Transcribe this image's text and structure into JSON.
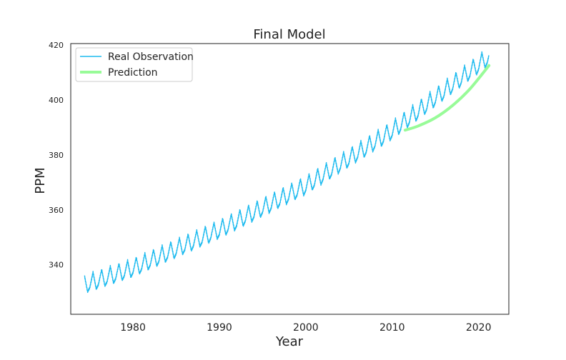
{
  "chart_data": {
    "type": "line",
    "title": "Final Model",
    "xlabel": "Year",
    "ylabel": "PPM",
    "xlim": [
      1972.8,
      2023.5
    ],
    "ylim": [
      322,
      420.5
    ],
    "xticks": [
      1980,
      1990,
      2000,
      2010,
      2020
    ],
    "yticks": [
      340,
      360,
      380,
      400,
      420
    ],
    "grid": false,
    "legend_position": "upper-left",
    "series": [
      {
        "name": "Real Observation",
        "color": "#1ebbef",
        "style": "seasonal-cycle",
        "x_range": [
          1974.4,
          2021.2
        ],
        "values_at_year": {
          "1974.4": 333.0,
          "1980": 339.0,
          "1990": 353.0,
          "2000": 369.0,
          "2010": 389.0,
          "2021": 415.5
        },
        "seasonal_amplitude": 6.5
      },
      {
        "name": "Prediction",
        "color": "#98fb98",
        "x": [
          2011.5,
          2013,
          2015,
          2017,
          2019,
          2021.2
        ],
        "values": [
          389.0,
          390.5,
          393.5,
          398.0,
          404.0,
          412.5
        ]
      }
    ]
  }
}
